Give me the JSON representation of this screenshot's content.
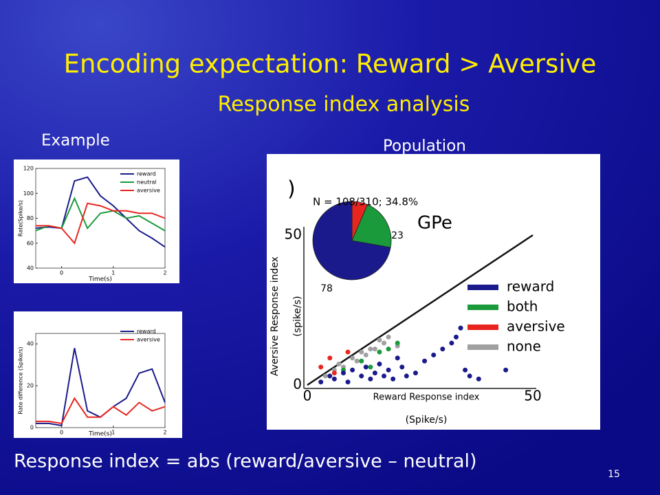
{
  "title": "Encoding expectation: Reward > Aversive",
  "subtitle": "Response index analysis",
  "labels": {
    "example": "Example",
    "population": "Population"
  },
  "formula": "Response index = abs (reward/aversive – neutral)",
  "page_number": "15",
  "chart_data": [
    {
      "type": "line",
      "xlabel": "Time(s)",
      "ylabel": "Rate(Spike/s)",
      "xlim": [
        -0.5,
        2
      ],
      "ylim": [
        40,
        120
      ],
      "xticks": [
        0,
        1,
        2
      ],
      "yticks": [
        40,
        60,
        80,
        100,
        120
      ],
      "x": [
        -0.5,
        -0.25,
        0,
        0.25,
        0.5,
        0.75,
        1,
        1.25,
        1.5,
        1.75,
        2
      ],
      "series": [
        {
          "name": "reward",
          "color": "#1a1a8c",
          "values": [
            72,
            73,
            72,
            110,
            113,
            98,
            90,
            80,
            70,
            64,
            57
          ]
        },
        {
          "name": "neutral",
          "color": "#1a9a3a",
          "values": [
            70,
            74,
            72,
            96,
            72,
            84,
            86,
            80,
            82,
            76,
            70
          ]
        },
        {
          "name": "aversive",
          "color": "#e8261f",
          "values": [
            74,
            74,
            72,
            60,
            92,
            90,
            86,
            86,
            84,
            84,
            80
          ]
        }
      ]
    },
    {
      "type": "line",
      "xlabel": "Time(s)",
      "ylabel": "Rate difference (Spike/s)",
      "xlim": [
        -0.5,
        2
      ],
      "ylim": [
        0,
        45
      ],
      "xticks": [
        0,
        1,
        2
      ],
      "yticks": [
        0,
        20,
        40
      ],
      "x": [
        -0.5,
        -0.25,
        0,
        0.25,
        0.5,
        0.75,
        1,
        1.25,
        1.5,
        1.75,
        2
      ],
      "series": [
        {
          "name": "reward",
          "color": "#1a1a8c",
          "values": [
            2,
            2,
            1,
            38,
            8,
            5,
            10,
            14,
            26,
            28,
            12
          ]
        },
        {
          "name": "aversive",
          "color": "#e8261f",
          "values": [
            3,
            3,
            2,
            14,
            5,
            5,
            10,
            6,
            12,
            8,
            10
          ]
        }
      ]
    },
    {
      "type": "scatter",
      "annotation": ")",
      "label": "GPe",
      "xlabel": "Reward Response index",
      "xunit": "(Spike/s)",
      "ylabel": "Aversive Response index",
      "yunit": "(spike/s)",
      "xlim": [
        0,
        50
      ],
      "ylim": [
        0,
        50
      ],
      "xticks": [
        0,
        50
      ],
      "yticks": [
        0,
        50
      ],
      "series": [
        {
          "name": "reward",
          "color": "#1a1a8c",
          "x": [
            3,
            5,
            6,
            8,
            9,
            10,
            12,
            13,
            14,
            15,
            16,
            17,
            18,
            19,
            20,
            21,
            22,
            24,
            26,
            28,
            30,
            32,
            33,
            34,
            35,
            36,
            38,
            44
          ],
          "values": [
            1,
            3,
            2,
            4,
            1,
            5,
            3,
            6,
            2,
            4,
            7,
            3,
            5,
            2,
            9,
            6,
            3,
            4,
            8,
            10,
            12,
            14,
            16,
            19,
            5,
            3,
            2,
            5
          ]
        },
        {
          "name": "both",
          "color": "#1a9a3a",
          "x": [
            8,
            12,
            14,
            16,
            18,
            20
          ],
          "values": [
            5,
            8,
            6,
            11,
            12,
            14
          ]
        },
        {
          "name": "aversive",
          "color": "#e8261f",
          "x": [
            3,
            5,
            6,
            9
          ],
          "values": [
            6,
            9,
            4,
            11
          ]
        },
        {
          "name": "none",
          "color": "#a0a0a0",
          "x": [
            4,
            6,
            7,
            8,
            10,
            11,
            12,
            13,
            14,
            15,
            16,
            17,
            18,
            20
          ],
          "values": [
            3,
            5,
            7,
            6,
            9,
            8,
            11,
            10,
            12,
            12,
            15,
            14,
            16,
            13
          ]
        }
      ]
    },
    {
      "type": "pie",
      "annotation": "N = 108/310; 34.8%",
      "values": [
        7,
        23,
        78
      ],
      "colors": [
        "#e8261f",
        "#1a9a3a",
        "#1a1a8c"
      ]
    }
  ]
}
